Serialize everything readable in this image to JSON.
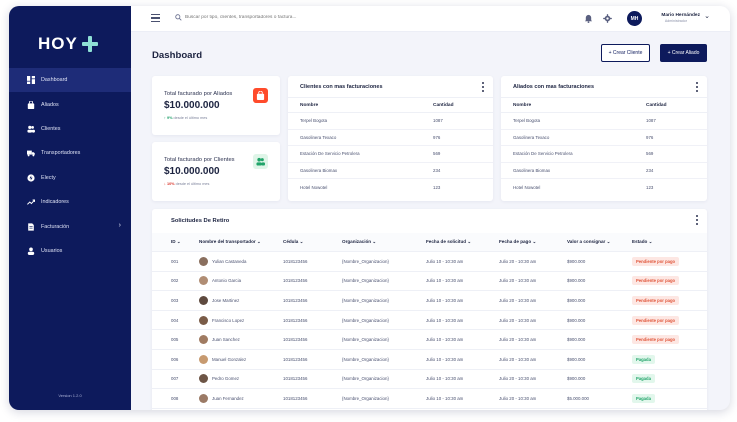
{
  "brand": {
    "logo_text": "HOY",
    "version": "Version 1.2.0"
  },
  "colors": {
    "sidebar": "#0d1a5c",
    "accent": "#0d1a5c",
    "pending_bg": "#fde7e3",
    "pending_text": "#e0563b",
    "paid_bg": "#e2f7ec",
    "paid_text": "#21a46a"
  },
  "sidebar": {
    "items": [
      {
        "label": "Dashboard",
        "icon": "dashboard-icon"
      },
      {
        "label": "Aliados",
        "icon": "bag-icon"
      },
      {
        "label": "Clientes",
        "icon": "users-icon"
      },
      {
        "label": "Transportadores",
        "icon": "truck-icon"
      },
      {
        "label": "Electy",
        "icon": "bolt-icon"
      },
      {
        "label": "Indicadores",
        "icon": "trend-icon"
      },
      {
        "label": "Facturación",
        "icon": "invoice-icon"
      },
      {
        "label": "Usuarios",
        "icon": "user-icon"
      }
    ]
  },
  "topbar": {
    "search_placeholder": "Buscar por tipo, clientes, transportadores o factura...",
    "user": {
      "initials": "MH",
      "name": "Mario Hernández",
      "role": "Administrador"
    }
  },
  "page": {
    "title": "Dashboard",
    "create_client": "+ Crear Cliente",
    "create_ally": "+ Crear Aliado"
  },
  "kpis": [
    {
      "label": "Total facturado por Aliados",
      "value": "$10.000.000",
      "delta": "↑ 9%",
      "delta_text": " desde el último mes",
      "icon": "bag-icon"
    },
    {
      "label": "Total facturado por Clientes",
      "value": "$10.000.000",
      "delta": "↓ 10%",
      "delta_text": " desde el último mes",
      "icon": "users-icon"
    }
  ],
  "clients_table": {
    "title": "Clientes con mas facturaciones",
    "headers": [
      "Nombre",
      "Cantidad"
    ],
    "rows": [
      [
        "Terpel Bogota",
        "1087"
      ],
      [
        "Gasolinera Texaco",
        "976"
      ],
      [
        "Estación De Servicio Petrolera",
        "569"
      ],
      [
        "Gasolinera Biomax",
        "234"
      ],
      [
        "Hotel Nowotel",
        "123"
      ]
    ]
  },
  "allies_table": {
    "title": "Aliados con mas facturaciones",
    "headers": [
      "Nombre",
      "Cantidad"
    ],
    "rows": [
      [
        "Terpel Bogota",
        "1087"
      ],
      [
        "Gasolinera Texaco",
        "976"
      ],
      [
        "Estación De Servicio Petrolera",
        "569"
      ],
      [
        "Gasolinera Biomax",
        "234"
      ],
      [
        "Hotel Nowotel",
        "123"
      ]
    ]
  },
  "withdrawals": {
    "title": "Solicitudes De Retiro",
    "headers": [
      "ID ⌄",
      "Nombre del transportador ⌄",
      "Cédula ⌄",
      "Organización ⌄",
      "Fecha de solicitud ⌄",
      "Fecha de pago ⌄",
      "Valor a consignar ⌄",
      "Estado ⌄"
    ],
    "rows": [
      {
        "id": "001",
        "name": "Yulian Castaneda",
        "cedula": "1018123456",
        "org": "{Nombre_Organizacion}",
        "req": "Julio 10 - 10:30 am",
        "pay": "Julio 20 - 10:30 am",
        "value": "$900.000",
        "status": "Pendiente por pago",
        "kind": "pending"
      },
      {
        "id": "002",
        "name": "Antonio Garcia",
        "cedula": "1018123456",
        "org": "{Nombre_Organizacion}",
        "req": "Julio 10 - 10:30 am",
        "pay": "Julio 20 - 10:30 am",
        "value": "$900.000",
        "status": "Pendiente por pago",
        "kind": "pending"
      },
      {
        "id": "003",
        "name": "Jose Martinez",
        "cedula": "1018123456",
        "org": "{Nombre_Organizacion}",
        "req": "Julio 10 - 10:30 am",
        "pay": "Julio 20 - 10:30 am",
        "value": "$900.000",
        "status": "Pendiente por pago",
        "kind": "pending"
      },
      {
        "id": "004",
        "name": "Francisco Lopez",
        "cedula": "1018123456",
        "org": "{Nombre_Organizacion}",
        "req": "Julio 10 - 10:30 am",
        "pay": "Julio 20 - 10:30 am",
        "value": "$900.000",
        "status": "Pendiente por pago",
        "kind": "pending"
      },
      {
        "id": "005",
        "name": "Juan Sanchez",
        "cedula": "1018123456",
        "org": "{Nombre_Organizacion}",
        "req": "Julio 10 - 10:30 am",
        "pay": "Julio 20 - 10:30 am",
        "value": "$900.000",
        "status": "Pendiente por pago",
        "kind": "pending"
      },
      {
        "id": "006",
        "name": "Manuel Gonzalez",
        "cedula": "1018123456",
        "org": "{Nombre_Organizacion}",
        "req": "Julio 10 - 10:30 am",
        "pay": "Julio 20 - 10:30 am",
        "value": "$900.000",
        "status": "Pagada",
        "kind": "paid"
      },
      {
        "id": "007",
        "name": "Pedro Gomez",
        "cedula": "1018123456",
        "org": "{Nombre_Organizacion}",
        "req": "Julio 10 - 10:30 am",
        "pay": "Julio 20 - 10:30 am",
        "value": "$900.000",
        "status": "Pagada",
        "kind": "paid"
      },
      {
        "id": "008",
        "name": "Juan Fernandez",
        "cedula": "1018123456",
        "org": "{Nombre_Organizacion}",
        "req": "Julio 10 - 10:30 am",
        "pay": "Julio 20 - 10:30 am",
        "value": "$5.000.000",
        "status": "Pagada",
        "kind": "paid"
      }
    ]
  }
}
